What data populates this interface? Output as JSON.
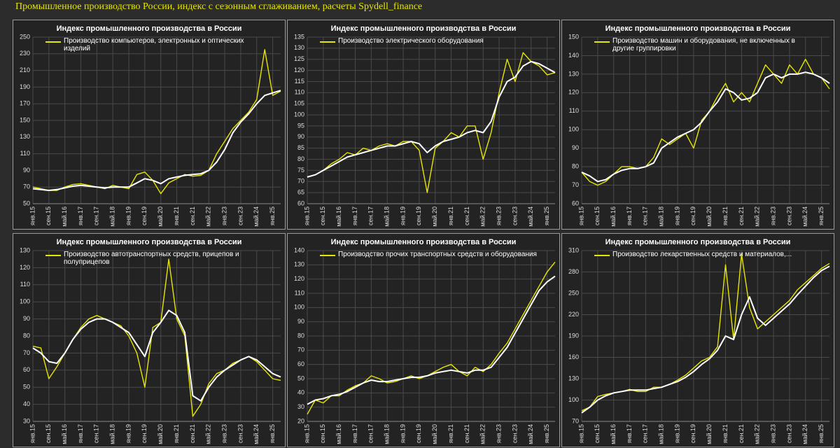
{
  "header": {
    "title": "Промышленное производство России, индекс с сезонным сглаживанием, расчеты Spydell_finance"
  },
  "chart_data": [
    {
      "type": "line",
      "title": "Индекс промышленного производства в России",
      "legend": "upper left",
      "grid": true,
      "categories": [
        "янв.15",
        null,
        "сен.15",
        null,
        "май.16",
        null,
        "янв.17",
        null,
        "сен.17",
        null,
        "май.18",
        null,
        "янв.19",
        null,
        "сен.19",
        null,
        "май.20",
        null,
        "янв.21",
        null,
        "сен.21",
        null,
        "май.22",
        null,
        "янв.23",
        null,
        "сен.23",
        null,
        "май.24",
        null,
        "янв.25",
        null
      ],
      "ylim": [
        50,
        250
      ],
      "yticks": [
        50,
        70,
        90,
        110,
        130,
        150,
        170,
        190,
        210,
        230,
        250
      ],
      "series": [
        {
          "name": "Производство компьютеров, электронных и оптических изделий",
          "color": "#e6e600",
          "values": [
            70,
            68,
            66,
            66,
            70,
            73,
            74,
            72,
            70,
            68,
            72,
            70,
            68,
            85,
            88,
            78,
            62,
            75,
            80,
            85,
            83,
            84,
            90,
            110,
            125,
            140,
            150,
            160,
            175,
            235,
            180,
            185
          ]
        },
        {
          "color": "#ffffff",
          "values": [
            68,
            67,
            66,
            67,
            69,
            71,
            72,
            71,
            70,
            69,
            70,
            70,
            70,
            75,
            80,
            78,
            74,
            80,
            82,
            84,
            85,
            86,
            90,
            100,
            115,
            135,
            148,
            158,
            170,
            180,
            183,
            186
          ]
        }
      ]
    },
    {
      "type": "line",
      "title": "Индекс промышленного производства в России",
      "legend": "upper left",
      "grid": true,
      "categories": [
        "янв.15",
        null,
        "сен.15",
        null,
        "май.16",
        null,
        "янв.17",
        null,
        "сен.17",
        null,
        "май.18",
        null,
        "янв.19",
        null,
        "сен.19",
        null,
        "май.20",
        null,
        "янв.21",
        null,
        "сен.21",
        null,
        "май.22",
        null,
        "янв.23",
        null,
        "сен.23",
        null,
        "май.24",
        null,
        "янв.25",
        null
      ],
      "ylim": [
        60,
        135
      ],
      "yticks": [
        60,
        65,
        70,
        75,
        80,
        85,
        90,
        95,
        100,
        105,
        110,
        115,
        120,
        125,
        130,
        135
      ],
      "series": [
        {
          "name": "Производство электрического оборудования",
          "color": "#e6e600",
          "values": [
            72,
            73,
            75,
            78,
            80,
            83,
            82,
            85,
            84,
            86,
            87,
            86,
            88,
            88,
            84,
            65,
            85,
            88,
            92,
            90,
            95,
            95,
            80,
            92,
            110,
            125,
            115,
            128,
            124,
            122,
            118,
            119
          ]
        },
        {
          "color": "#ffffff",
          "values": [
            72,
            73,
            75,
            77,
            79,
            81,
            82,
            83,
            84,
            85,
            86,
            86,
            87,
            88,
            87,
            83,
            86,
            88,
            89,
            90,
            92,
            93,
            92,
            97,
            108,
            115,
            117,
            122,
            124,
            123,
            121,
            119
          ]
        }
      ]
    },
    {
      "type": "line",
      "title": "Индекс промышленного производства в России",
      "legend": "upper left",
      "grid": true,
      "categories": [
        "янв.15",
        null,
        "сен.15",
        null,
        "май.16",
        null,
        "янв.17",
        null,
        "сен.17",
        null,
        "май.18",
        null,
        "янв.19",
        null,
        "сен.19",
        null,
        "май.20",
        null,
        "янв.21",
        null,
        "сен.21",
        null,
        "май.22",
        null,
        "янв.23",
        null,
        "сен.23",
        null,
        "май.24",
        null,
        "янв.25",
        null
      ],
      "ylim": [
        60,
        150
      ],
      "yticks": [
        60,
        70,
        80,
        90,
        100,
        110,
        120,
        130,
        140,
        150
      ],
      "series": [
        {
          "name": "Производство машин и оборудования, не включенных в другие группировки",
          "color": "#e6e600",
          "values": [
            77,
            72,
            70,
            72,
            76,
            80,
            80,
            79,
            80,
            85,
            95,
            92,
            95,
            98,
            90,
            105,
            110,
            118,
            125,
            115,
            120,
            115,
            125,
            135,
            130,
            125,
            135,
            130,
            138,
            130,
            128,
            122
          ]
        },
        {
          "color": "#ffffff",
          "values": [
            77,
            75,
            72,
            73,
            76,
            78,
            79,
            79,
            80,
            82,
            90,
            93,
            96,
            98,
            100,
            104,
            110,
            115,
            122,
            120,
            116,
            117,
            120,
            128,
            130,
            128,
            130,
            130,
            131,
            130,
            128,
            125
          ]
        }
      ]
    },
    {
      "type": "line",
      "title": "Индекс промышленного производства в России",
      "legend": "upper left",
      "grid": true,
      "categories": [
        "янв.15",
        null,
        "сен.15",
        null,
        "май.16",
        null,
        "янв.17",
        null,
        "сен.17",
        null,
        "май.18",
        null,
        "янв.19",
        null,
        "сен.19",
        null,
        "май.20",
        null,
        "янв.21",
        null,
        "сен.21",
        null,
        "май.22",
        null,
        "янв.23",
        null,
        "сен.23",
        null,
        "май.24",
        null,
        "янв.25",
        null
      ],
      "ylim": [
        30,
        130
      ],
      "yticks": [
        30,
        40,
        50,
        60,
        70,
        80,
        90,
        100,
        110,
        120,
        130
      ],
      "series": [
        {
          "name": "Производство автотранспортных средств, прицепов и полуприцепов",
          "color": "#e6e600",
          "values": [
            74,
            73,
            55,
            62,
            70,
            78,
            85,
            90,
            92,
            90,
            88,
            86,
            80,
            70,
            50,
            85,
            88,
            125,
            90,
            80,
            33,
            40,
            52,
            58,
            60,
            64,
            66,
            68,
            65,
            60,
            55,
            54
          ]
        },
        {
          "color": "#ffffff",
          "values": [
            73,
            70,
            65,
            64,
            70,
            78,
            84,
            88,
            90,
            90,
            88,
            85,
            82,
            75,
            68,
            82,
            88,
            95,
            92,
            82,
            45,
            42,
            50,
            56,
            60,
            63,
            66,
            68,
            66,
            62,
            58,
            56
          ]
        }
      ]
    },
    {
      "type": "line",
      "title": "Индекс промышленного производства в России",
      "legend": "upper left",
      "grid": true,
      "categories": [
        "янв.15",
        null,
        "сен.15",
        null,
        "май.16",
        null,
        "янв.17",
        null,
        "сен.17",
        null,
        "май.18",
        null,
        "янв.19",
        null,
        "сен.19",
        null,
        "май.20",
        null,
        "янв.21",
        null,
        "сен.21",
        null,
        "май.22",
        null,
        "янв.23",
        null,
        "сен.23",
        null,
        "май.24",
        null,
        "янв.25",
        null
      ],
      "ylim": [
        20,
        140
      ],
      "yticks": [
        20,
        30,
        40,
        50,
        60,
        70,
        80,
        90,
        100,
        110,
        120,
        130,
        140
      ],
      "series": [
        {
          "name": "Производство прочих транспортных средств и оборудования",
          "color": "#e6e600",
          "values": [
            25,
            35,
            33,
            38,
            38,
            42,
            45,
            47,
            52,
            50,
            47,
            48,
            50,
            52,
            50,
            52,
            55,
            58,
            60,
            55,
            52,
            58,
            55,
            60,
            68,
            75,
            85,
            95,
            105,
            115,
            125,
            132
          ]
        },
        {
          "color": "#ffffff",
          "values": [
            32,
            35,
            36,
            38,
            39,
            41,
            44,
            47,
            49,
            48,
            48,
            49,
            50,
            51,
            51,
            52,
            54,
            55,
            56,
            55,
            54,
            56,
            56,
            58,
            65,
            72,
            82,
            92,
            102,
            112,
            118,
            122
          ]
        }
      ]
    },
    {
      "type": "line",
      "title": "Индекс промышленного производства в России",
      "legend": "upper left",
      "grid": true,
      "categories": [
        "янв.15",
        null,
        "сен.15",
        null,
        "май.16",
        null,
        "янв.17",
        null,
        "сен.17",
        null,
        "май.18",
        null,
        "янв.19",
        null,
        "сен.19",
        null,
        "май.20",
        null,
        "янв.21",
        null,
        "сен.21",
        null,
        "май.22",
        null,
        "янв.23",
        null,
        "сен.23",
        null,
        "май.24",
        null,
        "янв.25",
        null
      ],
      "ylim": [
        70,
        310
      ],
      "yticks": [
        70,
        100,
        130,
        160,
        190,
        220,
        250,
        280,
        310
      ],
      "series": [
        {
          "name": "Производство лекарственных средств и материалов,...",
          "color": "#e6e600",
          "values": [
            85,
            90,
            105,
            108,
            110,
            112,
            115,
            112,
            112,
            118,
            118,
            122,
            128,
            135,
            145,
            155,
            160,
            175,
            290,
            185,
            305,
            230,
            200,
            210,
            220,
            230,
            240,
            255,
            265,
            275,
            285,
            292
          ]
        },
        {
          "color": "#ffffff",
          "values": [
            82,
            90,
            100,
            106,
            110,
            112,
            114,
            114,
            114,
            116,
            118,
            122,
            126,
            132,
            140,
            150,
            158,
            170,
            190,
            185,
            220,
            245,
            215,
            205,
            215,
            225,
            235,
            248,
            260,
            272,
            282,
            288
          ]
        }
      ]
    }
  ]
}
